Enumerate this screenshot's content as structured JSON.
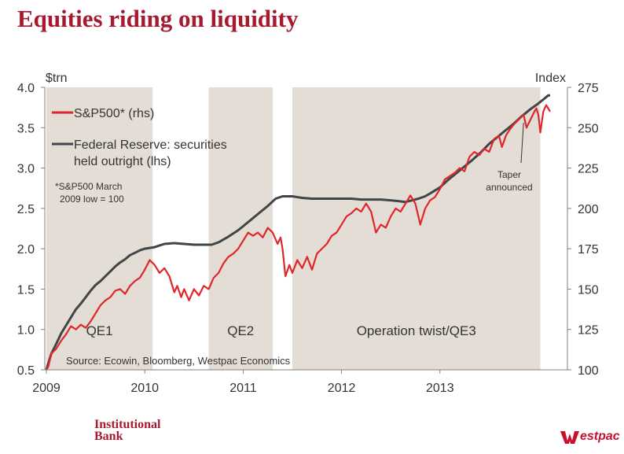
{
  "header": {
    "title": "Equities riding on liquidity"
  },
  "footer": {
    "brand_line1": "Institutional",
    "brand_line2": "Bank",
    "logo_text": "estpac",
    "logo_icon": "westpac-w-icon"
  },
  "colors": {
    "title": "#a6192e",
    "sp500": "#e0262b",
    "fed": "#404549",
    "shade": "#e4ddd5",
    "logo": "#c8102e"
  },
  "chart_data": {
    "type": "line",
    "left_axis": {
      "label": "$trn",
      "min": 0.5,
      "max": 4.0,
      "ticks": [
        "4.0",
        "3.5",
        "3.0",
        "2.5",
        "2.0",
        "1.5",
        "1.0",
        "0.5"
      ]
    },
    "right_axis": {
      "label": "Index",
      "min": 100,
      "max": 275,
      "ticks": [
        "275",
        "250",
        "225",
        "200",
        "175",
        "150",
        "125",
        "100"
      ]
    },
    "x_axis": {
      "min": 2009.0,
      "max": 2014.3,
      "ticks": [
        {
          "label": "2009",
          "value": 2009
        },
        {
          "label": "2010",
          "value": 2010
        },
        {
          "label": "2011",
          "value": 2011
        },
        {
          "label": "2012",
          "value": 2012
        },
        {
          "label": "2013",
          "value": 2013
        }
      ]
    },
    "shaded_periods": [
      {
        "label": "QE1",
        "start": 2009.0,
        "end": 2010.08
      },
      {
        "label": "QE2",
        "start": 2010.65,
        "end": 2011.3
      },
      {
        "label": "Operation twist/QE3",
        "start": 2011.5,
        "end": 2014.02
      }
    ],
    "series": [
      {
        "name": "S&P500* (rhs)",
        "axis": "right",
        "points": [
          [
            2009.0,
            100
          ],
          [
            2009.02,
            102
          ],
          [
            2009.05,
            110
          ],
          [
            2009.1,
            113
          ],
          [
            2009.15,
            118
          ],
          [
            2009.2,
            122
          ],
          [
            2009.25,
            127
          ],
          [
            2009.3,
            125
          ],
          [
            2009.35,
            128
          ],
          [
            2009.4,
            126
          ],
          [
            2009.45,
            130
          ],
          [
            2009.5,
            135
          ],
          [
            2009.55,
            140
          ],
          [
            2009.6,
            143
          ],
          [
            2009.65,
            145
          ],
          [
            2009.7,
            149
          ],
          [
            2009.75,
            150
          ],
          [
            2009.8,
            147
          ],
          [
            2009.85,
            152
          ],
          [
            2009.9,
            155
          ],
          [
            2009.95,
            157
          ],
          [
            2010.0,
            162
          ],
          [
            2010.05,
            168
          ],
          [
            2010.1,
            165
          ],
          [
            2010.15,
            160
          ],
          [
            2010.2,
            163
          ],
          [
            2010.25,
            158
          ],
          [
            2010.3,
            148
          ],
          [
            2010.33,
            152
          ],
          [
            2010.37,
            145
          ],
          [
            2010.4,
            150
          ],
          [
            2010.45,
            143
          ],
          [
            2010.5,
            150
          ],
          [
            2010.55,
            146
          ],
          [
            2010.6,
            152
          ],
          [
            2010.65,
            150
          ],
          [
            2010.7,
            157
          ],
          [
            2010.75,
            160
          ],
          [
            2010.8,
            166
          ],
          [
            2010.85,
            170
          ],
          [
            2010.9,
            172
          ],
          [
            2010.95,
            175
          ],
          [
            2011.0,
            180
          ],
          [
            2011.05,
            185
          ],
          [
            2011.1,
            183
          ],
          [
            2011.15,
            185
          ],
          [
            2011.2,
            182
          ],
          [
            2011.25,
            188
          ],
          [
            2011.3,
            185
          ],
          [
            2011.35,
            178
          ],
          [
            2011.38,
            182
          ],
          [
            2011.4,
            175
          ],
          [
            2011.43,
            158
          ],
          [
            2011.47,
            165
          ],
          [
            2011.5,
            160
          ],
          [
            2011.55,
            168
          ],
          [
            2011.6,
            163
          ],
          [
            2011.65,
            170
          ],
          [
            2011.7,
            162
          ],
          [
            2011.75,
            172
          ],
          [
            2011.8,
            175
          ],
          [
            2011.85,
            178
          ],
          [
            2011.9,
            183
          ],
          [
            2011.95,
            185
          ],
          [
            2012.0,
            190
          ],
          [
            2012.05,
            195
          ],
          [
            2012.1,
            197
          ],
          [
            2012.15,
            200
          ],
          [
            2012.2,
            198
          ],
          [
            2012.25,
            203
          ],
          [
            2012.3,
            198
          ],
          [
            2012.35,
            185
          ],
          [
            2012.4,
            190
          ],
          [
            2012.45,
            188
          ],
          [
            2012.5,
            195
          ],
          [
            2012.55,
            200
          ],
          [
            2012.6,
            198
          ],
          [
            2012.65,
            203
          ],
          [
            2012.7,
            208
          ],
          [
            2012.75,
            203
          ],
          [
            2012.8,
            190
          ],
          [
            2012.85,
            200
          ],
          [
            2012.9,
            205
          ],
          [
            2012.95,
            207
          ],
          [
            2013.0,
            212
          ],
          [
            2013.05,
            218
          ],
          [
            2013.1,
            220
          ],
          [
            2013.15,
            222
          ],
          [
            2013.2,
            225
          ],
          [
            2013.25,
            223
          ],
          [
            2013.3,
            232
          ],
          [
            2013.35,
            235
          ],
          [
            2013.4,
            233
          ],
          [
            2013.45,
            237
          ],
          [
            2013.5,
            235
          ],
          [
            2013.55,
            243
          ],
          [
            2013.6,
            245
          ],
          [
            2013.63,
            238
          ],
          [
            2013.67,
            245
          ],
          [
            2013.7,
            248
          ],
          [
            2013.75,
            252
          ],
          [
            2013.8,
            255
          ],
          [
            2013.85,
            258
          ],
          [
            2013.88,
            250
          ],
          [
            2013.92,
            255
          ],
          [
            2013.96,
            260
          ],
          [
            2013.98,
            262
          ],
          [
            2014.0,
            258
          ],
          [
            2014.02,
            247
          ],
          [
            2014.05,
            260
          ],
          [
            2014.08,
            264
          ],
          [
            2014.1,
            262
          ],
          [
            2014.12,
            260
          ]
        ]
      },
      {
        "name": "Federal Reserve: securities held outright (lhs)",
        "axis": "left",
        "points": [
          [
            2009.0,
            0.5
          ],
          [
            2009.05,
            0.7
          ],
          [
            2009.1,
            0.82
          ],
          [
            2009.15,
            0.95
          ],
          [
            2009.2,
            1.05
          ],
          [
            2009.25,
            1.15
          ],
          [
            2009.3,
            1.25
          ],
          [
            2009.35,
            1.32
          ],
          [
            2009.4,
            1.4
          ],
          [
            2009.45,
            1.48
          ],
          [
            2009.5,
            1.55
          ],
          [
            2009.55,
            1.6
          ],
          [
            2009.6,
            1.66
          ],
          [
            2009.65,
            1.72
          ],
          [
            2009.7,
            1.78
          ],
          [
            2009.75,
            1.83
          ],
          [
            2009.8,
            1.87
          ],
          [
            2009.85,
            1.92
          ],
          [
            2009.9,
            1.95
          ],
          [
            2009.95,
            1.98
          ],
          [
            2010.0,
            2.0
          ],
          [
            2010.1,
            2.02
          ],
          [
            2010.2,
            2.06
          ],
          [
            2010.3,
            2.07
          ],
          [
            2010.4,
            2.06
          ],
          [
            2010.5,
            2.05
          ],
          [
            2010.6,
            2.05
          ],
          [
            2010.68,
            2.05
          ],
          [
            2010.75,
            2.08
          ],
          [
            2010.85,
            2.15
          ],
          [
            2010.95,
            2.23
          ],
          [
            2011.05,
            2.33
          ],
          [
            2011.15,
            2.43
          ],
          [
            2011.25,
            2.53
          ],
          [
            2011.33,
            2.62
          ],
          [
            2011.4,
            2.65
          ],
          [
            2011.5,
            2.65
          ],
          [
            2011.6,
            2.63
          ],
          [
            2011.7,
            2.62
          ],
          [
            2011.8,
            2.62
          ],
          [
            2011.9,
            2.62
          ],
          [
            2012.0,
            2.62
          ],
          [
            2012.1,
            2.62
          ],
          [
            2012.2,
            2.61
          ],
          [
            2012.3,
            2.61
          ],
          [
            2012.4,
            2.61
          ],
          [
            2012.5,
            2.6
          ],
          [
            2012.58,
            2.59
          ],
          [
            2012.65,
            2.58
          ],
          [
            2012.72,
            2.6
          ],
          [
            2012.78,
            2.62
          ],
          [
            2012.85,
            2.65
          ],
          [
            2012.92,
            2.7
          ],
          [
            2013.0,
            2.76
          ],
          [
            2013.08,
            2.85
          ],
          [
            2013.16,
            2.93
          ],
          [
            2013.25,
            3.02
          ],
          [
            2013.33,
            3.1
          ],
          [
            2013.42,
            3.2
          ],
          [
            2013.5,
            3.3
          ],
          [
            2013.58,
            3.38
          ],
          [
            2013.66,
            3.46
          ],
          [
            2013.75,
            3.55
          ],
          [
            2013.83,
            3.64
          ],
          [
            2013.92,
            3.73
          ],
          [
            2014.0,
            3.8
          ],
          [
            2014.05,
            3.85
          ],
          [
            2014.1,
            3.9
          ],
          [
            2014.12,
            3.9
          ]
        ]
      }
    ],
    "legend": [
      {
        "label": "S&P500* (rhs)",
        "series": "S&P500* (rhs)"
      },
      {
        "label_line1": "Federal Reserve: securities",
        "label_line2": "held outright (lhs)",
        "series": "Federal Reserve: securities held outright (lhs)"
      }
    ],
    "annotations": {
      "base_note_line1": "*S&P500 March",
      "base_note_line2": "2009  low = 100",
      "taper_line1": "Taper",
      "taper_line2": "announced",
      "taper_date": 2013.85,
      "taper_value": 255,
      "source": "Source: Ecowin, Bloomberg, Westpac Economics"
    }
  }
}
